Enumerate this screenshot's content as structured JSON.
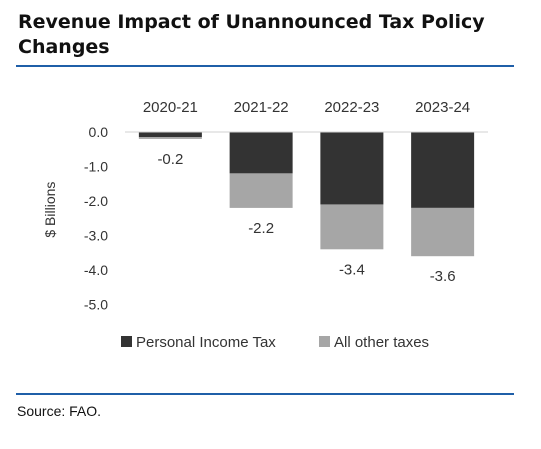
{
  "title": "Revenue Impact of Unannounced Tax Policy Changes",
  "source": "Source: FAO.",
  "chart_data": {
    "type": "bar",
    "stacked": true,
    "categories": [
      "2020-21",
      "2021-22",
      "2022-23",
      "2023-24"
    ],
    "series": [
      {
        "name": "Personal Income Tax",
        "color": "#333333",
        "values": [
          -0.15,
          -1.2,
          -2.1,
          -2.2
        ]
      },
      {
        "name": "All other taxes",
        "color": "#a6a6a6",
        "values": [
          -0.05,
          -1.0,
          -1.3,
          -1.4
        ]
      }
    ],
    "totals": [
      -0.2,
      -2.2,
      -3.4,
      -3.6
    ],
    "total_labels": [
      "-0.2",
      "-2.2",
      "-3.4",
      "-3.6"
    ],
    "yticks": [
      0.0,
      -1.0,
      -2.0,
      -3.0,
      -4.0,
      -5.0
    ],
    "ytick_labels": [
      "0.0",
      "-1.0",
      "-2.0",
      "-3.0",
      "-4.0",
      "-5.0"
    ],
    "ylabel": "$ Billions",
    "xlabel": "",
    "ylim": [
      -5.0,
      0.0
    ],
    "category_axis_position": "top",
    "legend_position": "bottom",
    "grid": false
  }
}
